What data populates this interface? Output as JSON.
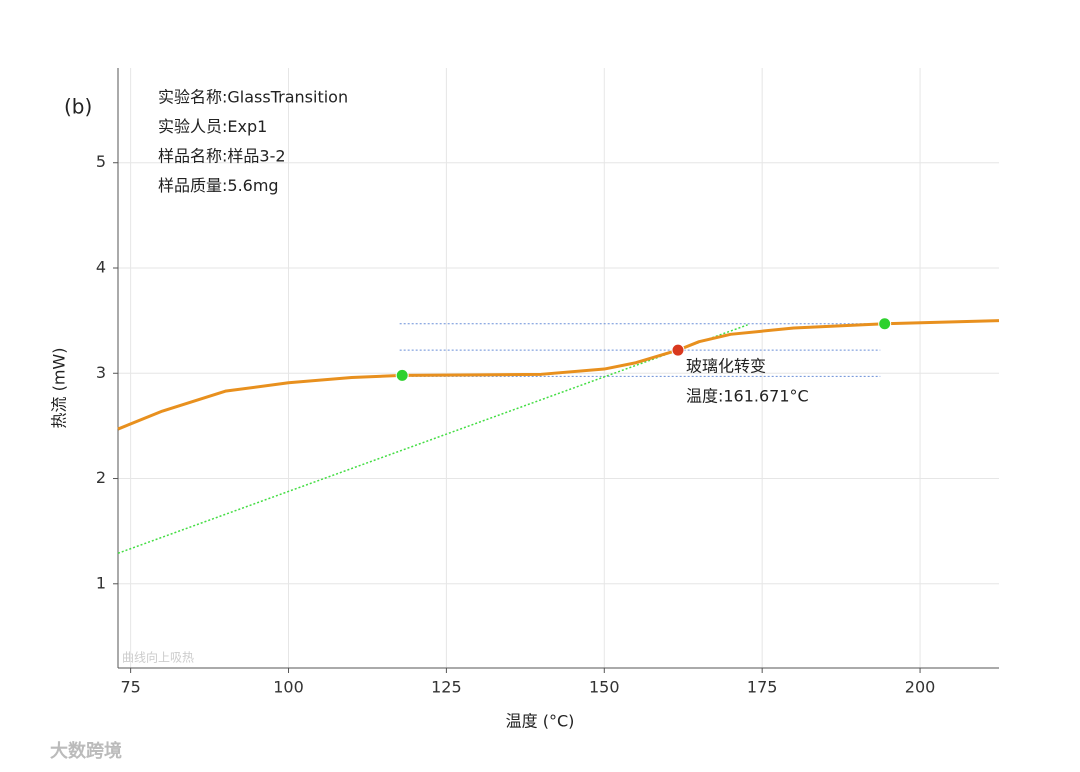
{
  "chart_data": {
    "type": "line",
    "panel_label": "(b)",
    "info": [
      "实验名称:GlassTransition",
      "实验人员:Exp1",
      "样品名称:样品3-2",
      "样品质量:5.6mg"
    ],
    "x_label": "温度 (°C)",
    "y_label": "热流 (mW)",
    "corner_note": "曲线向上吸热",
    "watermark": "大数跨境",
    "xlim": [
      73,
      212.5
    ],
    "ylim": [
      0.2,
      5.9
    ],
    "xticks": [
      75,
      100,
      125,
      150,
      175,
      200
    ],
    "yticks": [
      1,
      2,
      3,
      4,
      5
    ],
    "grid": true,
    "x": [
      73,
      80,
      90,
      100,
      110,
      118,
      130,
      140,
      150,
      155,
      161.671,
      165,
      170,
      180,
      194.4,
      212.5
    ],
    "series": [
      {
        "name": "热流",
        "color": "#e8901e",
        "values": [
          2.47,
          2.64,
          2.83,
          2.91,
          2.96,
          2.98,
          2.985,
          2.99,
          3.04,
          3.1,
          3.22,
          3.3,
          3.37,
          3.43,
          3.47,
          3.5
        ]
      }
    ],
    "markers": [
      {
        "x": 118,
        "y": 2.98,
        "color": "#2ed12e"
      },
      {
        "x": 161.671,
        "y": 3.22,
        "color": "#d9381e"
      },
      {
        "x": 194.4,
        "y": 3.47,
        "color": "#2ed12e"
      }
    ],
    "hlines": [
      {
        "y": 3.47,
        "x": [
          117.6,
          193.7
        ],
        "color": "#6a8fd8"
      },
      {
        "y": 3.22,
        "x": [
          117.6,
          193.7
        ],
        "color": "#6a8fd8"
      },
      {
        "y": 2.97,
        "x": [
          117.6,
          193.7
        ],
        "color": "#6a8fd8"
      }
    ],
    "tangent": {
      "x": [
        73,
        172.7
      ],
      "y": [
        1.29,
        3.46
      ],
      "color": "#44dd44"
    },
    "annotation": {
      "title": "玻璃化转变",
      "text": "温度:161.671°C"
    }
  }
}
